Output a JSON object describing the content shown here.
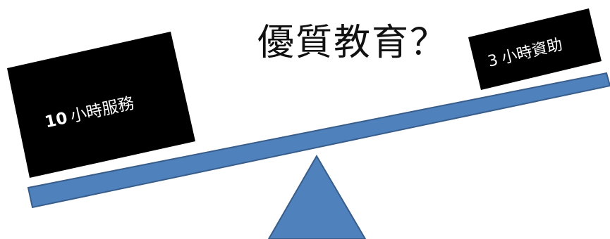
{
  "title": "優質教育？",
  "left_box": {
    "number": "10",
    "text": "小時服務"
  },
  "right_box": {
    "number": "3",
    "text": "小時資助"
  },
  "colors": {
    "beam_fill": "#4f81bd",
    "beam_stroke": "#385d8a",
    "fulcrum_fill": "#4f81bd",
    "fulcrum_stroke": "#385d8a",
    "box_fill": "#000000",
    "box_text": "#ffffff",
    "title_text": "#111111"
  }
}
